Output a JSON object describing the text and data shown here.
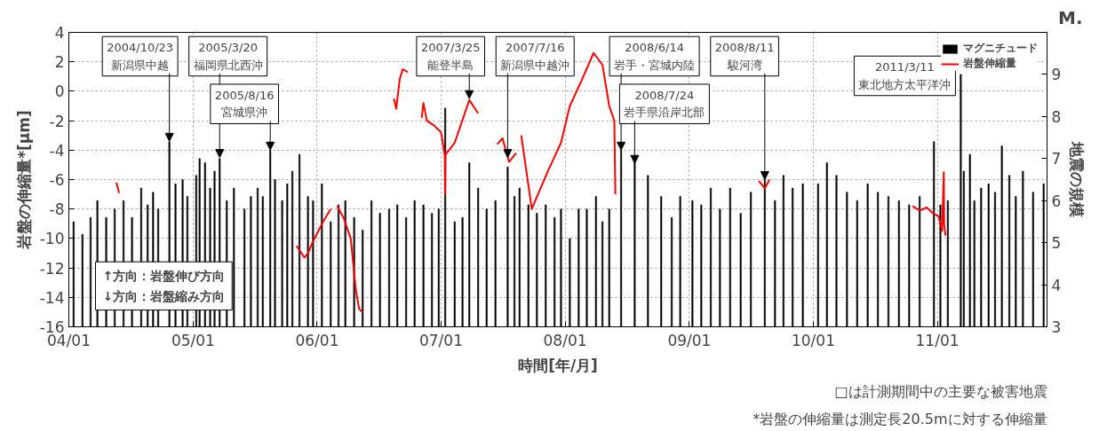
{
  "chart_data": {
    "type": "bar",
    "xlabel": "時間[年/月]",
    "ylabel": "岩盤の伸縮量*[μm]",
    "y2label": "地震の規模",
    "xlim": [
      "2004-01-01",
      "2011-11-20"
    ],
    "xticks": [
      {
        "value": "2004-01-01",
        "label": "04/01"
      },
      {
        "value": "2005-01-01",
        "label": "05/01"
      },
      {
        "value": "2006-01-01",
        "label": "06/01"
      },
      {
        "value": "2007-01-01",
        "label": "07/01"
      },
      {
        "value": "2008-01-01",
        "label": "08/01"
      },
      {
        "value": "2009-01-01",
        "label": "09/01"
      },
      {
        "value": "2010-01-01",
        "label": "10/01"
      },
      {
        "value": "2011-01-01",
        "label": "11/01"
      }
    ],
    "ylim": [
      -16,
      4
    ],
    "yticks": [
      -16,
      -14,
      -12,
      -10,
      -8,
      -6,
      -4,
      -2,
      0,
      2,
      4
    ],
    "y2lim": [
      3,
      10
    ],
    "y2ticks": [
      3,
      4,
      5,
      6,
      7,
      8,
      9
    ],
    "grid": true,
    "legend": "top right",
    "series": [
      {
        "name": "マグニチュード",
        "axis": "y2",
        "color": "#000000",
        "x": [
          "2004-01-15",
          "2004-02-10",
          "2004-03-05",
          "2004-03-25",
          "2004-04-20",
          "2004-05-15",
          "2004-06-10",
          "2004-07-05",
          "2004-08-01",
          "2004-08-20",
          "2004-09-05",
          "2004-09-20",
          "2004-10-23",
          "2004-11-10",
          "2004-12-01",
          "2004-12-15",
          "2005-01-10",
          "2005-01-20",
          "2005-02-05",
          "2005-02-20",
          "2005-03-05",
          "2005-03-20",
          "2005-04-10",
          "2005-05-01",
          "2005-06-01",
          "2005-06-20",
          "2005-07-10",
          "2005-07-25",
          "2005-08-16",
          "2005-08-30",
          "2005-09-20",
          "2005-10-05",
          "2005-10-20",
          "2005-11-10",
          "2005-12-05",
          "2005-12-20",
          "2006-01-15",
          "2006-02-10",
          "2006-03-05",
          "2006-03-25",
          "2006-04-20",
          "2006-05-15",
          "2006-06-10",
          "2006-07-05",
          "2006-08-01",
          "2006-08-25",
          "2006-09-20",
          "2006-10-15",
          "2006-11-10",
          "2006-12-05",
          "2006-12-25",
          "2007-01-13",
          "2007-02-10",
          "2007-03-05",
          "2007-03-25",
          "2007-04-20",
          "2007-05-15",
          "2007-06-10",
          "2007-07-16",
          "2007-08-05",
          "2007-08-20",
          "2007-09-15",
          "2007-10-10",
          "2007-11-05",
          "2007-12-01",
          "2007-12-20",
          "2008-01-15",
          "2008-02-10",
          "2008-03-05",
          "2008-04-01",
          "2008-04-20",
          "2008-05-10",
          "2008-06-14",
          "2008-07-24",
          "2008-09-01",
          "2008-10-10",
          "2008-11-10",
          "2008-12-05",
          "2009-01-10",
          "2009-02-05",
          "2009-03-05",
          "2009-04-01",
          "2009-05-01",
          "2009-06-01",
          "2009-07-01",
          "2009-08-11",
          "2009-09-10",
          "2009-10-05",
          "2009-11-01",
          "2009-12-01",
          "2010-01-15",
          "2010-02-10",
          "2010-03-10",
          "2010-04-10",
          "2010-05-10",
          "2010-06-10",
          "2010-07-10",
          "2010-08-10",
          "2010-09-10",
          "2010-10-10",
          "2010-11-10",
          "2010-12-22",
          "2011-01-10",
          "2011-02-01",
          "2011-03-11",
          "2011-03-20",
          "2011-04-07",
          "2011-04-20",
          "2011-05-10",
          "2011-06-01",
          "2011-06-20",
          "2011-07-10",
          "2011-08-01",
          "2011-08-20",
          "2011-09-10",
          "2011-10-10",
          "2011-11-10"
        ],
        "values": [
          5.5,
          5.2,
          5.6,
          6.0,
          5.6,
          5.8,
          6.0,
          5.6,
          6.3,
          5.9,
          6.2,
          5.8,
          7.4,
          6.4,
          6.5,
          6.1,
          6.6,
          7.0,
          6.9,
          6.3,
          6.7,
          7.0,
          6.0,
          6.3,
          5.8,
          6.1,
          6.3,
          6.1,
          7.2,
          6.5,
          6.0,
          6.4,
          6.7,
          7.1,
          6.1,
          6.0,
          6.4,
          5.5,
          5.9,
          6.0,
          5.6,
          5.3,
          6.0,
          5.7,
          5.8,
          5.9,
          5.6,
          6.0,
          5.9,
          5.7,
          5.8,
          8.2,
          5.5,
          5.6,
          6.9,
          6.3,
          5.8,
          6.0,
          6.8,
          6.1,
          6.3,
          5.9,
          5.7,
          5.9,
          5.6,
          5.8,
          5.1,
          5.8,
          5.8,
          6.1,
          5.5,
          5.8,
          7.2,
          6.9,
          6.6,
          6.1,
          5.6,
          6.1,
          6.0,
          5.9,
          6.3,
          5.8,
          6.3,
          5.7,
          6.2,
          6.5,
          6.0,
          6.6,
          6.3,
          6.4,
          6.4,
          6.9,
          6.6,
          6.2,
          6.0,
          6.4,
          6.2,
          6.1,
          6.0,
          5.9,
          6.1,
          7.4,
          5.9,
          6.0,
          9.0,
          6.7,
          7.1,
          6.0,
          6.3,
          6.4,
          6.2,
          7.3,
          6.6,
          6.1,
          6.7,
          6.2,
          6.4
        ]
      },
      {
        "name": "岩盤伸縮量",
        "type": "line",
        "color": "#ff0000",
        "x": [
          "2004-05-20",
          "2004-05-28",
          "2005-01-01",
          "2005-11-01",
          "2005-11-25",
          "2005-12-05",
          "2005-12-20",
          "2006-01-20",
          "2006-02-10",
          "2006-02-20",
          "2006-03-01",
          "2006-03-20",
          "2006-04-10",
          "2006-04-25",
          "2006-05-05",
          "2006-05-15",
          "2006-07-01",
          "2006-08-15",
          "2006-08-22",
          "2006-09-01",
          "2006-09-10",
          "2006-09-25",
          "2006-10-15",
          "2006-11-05",
          "2006-11-10",
          "2006-11-20",
          "2006-12-10",
          "2007-01-01",
          "2007-01-12",
          "2007-01-13",
          "2007-01-14",
          "2007-02-10",
          "2007-03-25",
          "2007-04-20",
          "2007-05-20",
          "2007-06-15",
          "2007-07-01",
          "2007-07-20",
          "2007-08-10",
          "2007-08-18",
          "2007-08-25",
          "2007-09-25",
          "2007-11-10",
          "2007-12-20",
          "2008-01-15",
          "2008-02-20",
          "2008-03-25",
          "2008-04-20",
          "2008-05-10",
          "2008-05-25",
          "2008-05-28",
          "2008-12-01",
          "2009-07-25",
          "2009-08-11",
          "2009-08-25",
          "2010-03-01",
          "2010-10-20",
          "2010-11-10",
          "2010-12-01",
          "2010-12-20",
          "2011-01-05",
          "2011-01-15",
          "2011-01-20",
          "2011-01-21",
          "2011-01-25"
        ],
        "values": [
          -6.2,
          -6.9,
          null,
          -10.5,
          -11.3,
          -11.0,
          -10.2,
          -8.8,
          -8.0,
          null,
          -7.8,
          -8.6,
          -10.0,
          -13.5,
          -14.8,
          -15.0,
          null,
          -0.5,
          -1.2,
          0.8,
          1.5,
          1.3,
          null,
          -1.8,
          -0.8,
          -2.0,
          -2.3,
          -2.8,
          -4.4,
          -7.0,
          -4.3,
          -3.5,
          -0.6,
          -1.5,
          null,
          -3.6,
          -3.2,
          -4.8,
          -4.2,
          null,
          -3.0,
          -8.0,
          -5.5,
          -3.5,
          -1.0,
          0.8,
          2.6,
          1.8,
          -1.0,
          -2.0,
          -7.0,
          null,
          -6.1,
          -6.6,
          -6.0,
          null,
          -7.8,
          -8.1,
          -7.9,
          -8.3,
          -8.5,
          -9.5,
          -5.5,
          -9.0,
          -9.8
        ]
      }
    ],
    "annotations": [
      {
        "text": "2004/10/23\n新潟県中越",
        "x": "2004-10-23",
        "y": -3.4
      },
      {
        "text": "2005/3/20\n福岡県北西沖",
        "x": "2005-03-20",
        "y": -4.5
      },
      {
        "text": "2005/8/16\n宮城県沖",
        "x": "2005-08-16",
        "y": -4.0
      },
      {
        "text": "2007/3/25\n能登半島",
        "x": "2007-03-25",
        "y": -0.5
      },
      {
        "text": "2007/7/16\n新潟県中越沖",
        "x": "2007-07-16",
        "y": -4.5
      },
      {
        "text": "2008/6/14\n岩手・宮城内陸",
        "x": "2008-06-14",
        "y": -4.0
      },
      {
        "text": "2008/7/24\n岩手県沿岸北部",
        "x": "2008-07-24",
        "y": -4.9
      },
      {
        "text": "2008/8/11\n駿河湾",
        "x": "2009-08-11",
        "y": -6.0
      },
      {
        "text": "2011/3/11\n東北地方太平洋沖",
        "x": "2011-03-11",
        "y": 1.14
      },
      "M.",
      "↑方向：岩盤伸び方向\n↓方向：岩盤縮み方向",
      "□は計測期間中の主要な被害地震",
      "*岩盤の伸縮量は測定長20.5mに対する伸縮量"
    ]
  }
}
